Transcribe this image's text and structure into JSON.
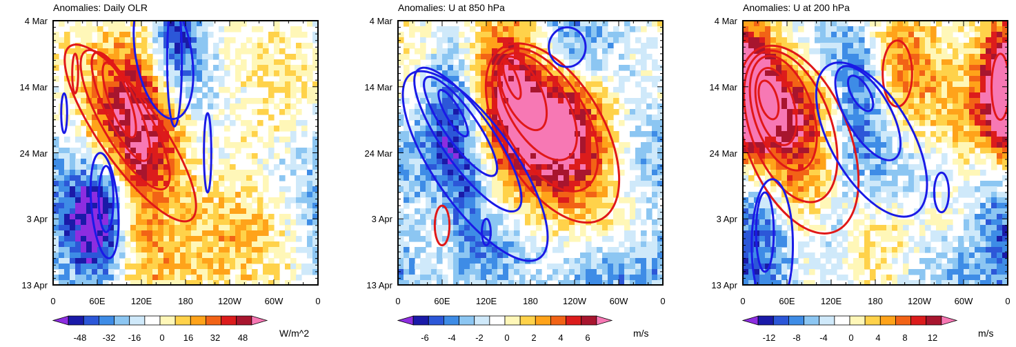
{
  "chart_data": [
    {
      "type": "heatmap",
      "title": "Anomalies: Daily OLR",
      "x_ticks": [
        "0",
        "60E",
        "120E",
        "180",
        "120W",
        "60W",
        "0"
      ],
      "y_ticks": [
        "4 Mar",
        "14 Mar",
        "24 Mar",
        "3 Apr",
        "13 Apr"
      ],
      "colorbar": {
        "labels": [
          "-48",
          "-32",
          "-16",
          "0",
          "16",
          "32",
          "48"
        ],
        "units": "W/m^2"
      },
      "red_contour_center": {
        "lon": 90,
        "day": 12
      },
      "blue_contour_center": {
        "lon": 70,
        "day": 27
      }
    },
    {
      "type": "heatmap",
      "title": "Anomalies: U at 850 hPa",
      "x_ticks": [
        "0",
        "60E",
        "120E",
        "180",
        "120W",
        "60W",
        "0"
      ],
      "y_ticks": [
        "4 Mar",
        "14 Mar",
        "24 Mar",
        "3 Apr",
        "13 Apr"
      ],
      "colorbar": {
        "labels": [
          "-6",
          "-4",
          "-2",
          "0",
          "2",
          "4",
          "6"
        ],
        "units": "m/s"
      },
      "red_contour_center": {
        "lon": 190,
        "day": 12
      },
      "blue_contour_center": {
        "lon": 90,
        "day": 18
      }
    },
    {
      "type": "heatmap",
      "title": "Anomalies: U at 200 hPa",
      "x_ticks": [
        "0",
        "60E",
        "120E",
        "180",
        "120W",
        "60W",
        "0"
      ],
      "y_ticks": [
        "4 Mar",
        "14 Mar",
        "24 Mar",
        "3 Apr",
        "13 Apr"
      ],
      "colorbar": {
        "labels": [
          "-12",
          "-8",
          "-4",
          "0",
          "4",
          "8",
          "12"
        ],
        "units": "m/s"
      },
      "red_contour_center": {
        "lon": 50,
        "day": 13
      },
      "blue_contour_center": {
        "lon": 150,
        "day": 18
      }
    }
  ],
  "colors": {
    "palette": [
      "#8d2de0",
      "#1a1aa8",
      "#2c57d8",
      "#3e8ce6",
      "#8cc6f2",
      "#cfe9fa",
      "#ffffff",
      "#fff7b8",
      "#ffd24a",
      "#ffa31a",
      "#f26316",
      "#dc1c1c",
      "#a8152e",
      "#f778b4"
    ],
    "contour_positive": "#e01818",
    "contour_negative": "#1a1ae6"
  }
}
